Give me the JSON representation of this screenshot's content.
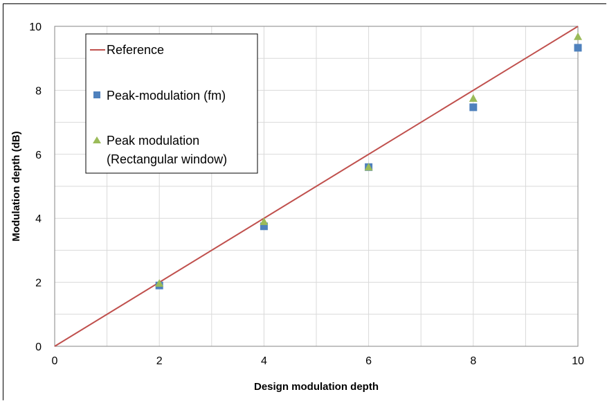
{
  "chart_data": {
    "type": "scatter",
    "title": "",
    "xlabel": "Design modulation depth",
    "ylabel": "Modulation depth (dB)",
    "xlim": [
      0,
      10
    ],
    "ylim": [
      0,
      10
    ],
    "x_ticks": [
      0,
      2,
      4,
      6,
      8,
      10
    ],
    "y_ticks": [
      0,
      2,
      4,
      6,
      8,
      10
    ],
    "grid": true,
    "legend_position": "top-left",
    "series": [
      {
        "name": "Reference",
        "kind": "line",
        "color": "#c0504d",
        "x": [
          0,
          10
        ],
        "y": [
          0,
          10
        ]
      },
      {
        "name": "Peak-modulation (fm)",
        "kind": "marker-square",
        "color": "#4f81bd",
        "x": [
          2,
          4,
          6,
          8,
          10
        ],
        "y": [
          1.9,
          3.75,
          5.6,
          7.47,
          9.33
        ]
      },
      {
        "name": "Peak modulation\n(Rectangular window)",
        "kind": "marker-triangle",
        "color": "#9bbb59",
        "x": [
          2,
          4,
          6,
          8,
          10
        ],
        "y": [
          1.97,
          3.9,
          5.6,
          7.75,
          9.68
        ]
      }
    ]
  }
}
